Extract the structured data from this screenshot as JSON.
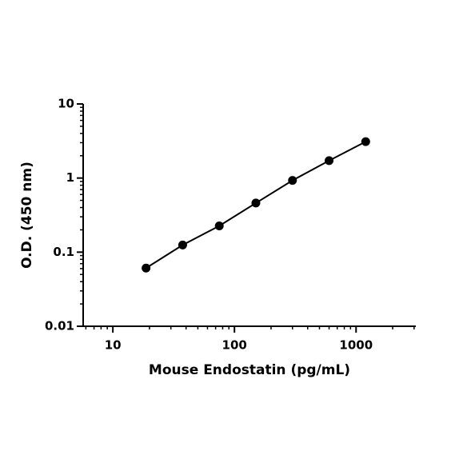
{
  "chart_data": {
    "type": "scatter",
    "x_label": "Mouse Endostatin (pg/mL)",
    "y_label": "O.D. (450 nm)",
    "x": [
      18.75,
      37.5,
      75,
      150,
      300,
      600,
      1200
    ],
    "series": [
      {
        "color": "#000000",
        "values": [
          0.061,
          0.125,
          0.226,
          0.46,
          0.93,
          1.72,
          3.1
        ]
      }
    ],
    "xlim": [
      5.7,
      3100
    ],
    "ylim": [
      0.01,
      10
    ],
    "xticks": [
      10,
      100,
      1000
    ],
    "yticks": [
      0.01,
      0.1,
      1,
      10
    ],
    "xlog": true,
    "ylog": true,
    "line": true
  }
}
